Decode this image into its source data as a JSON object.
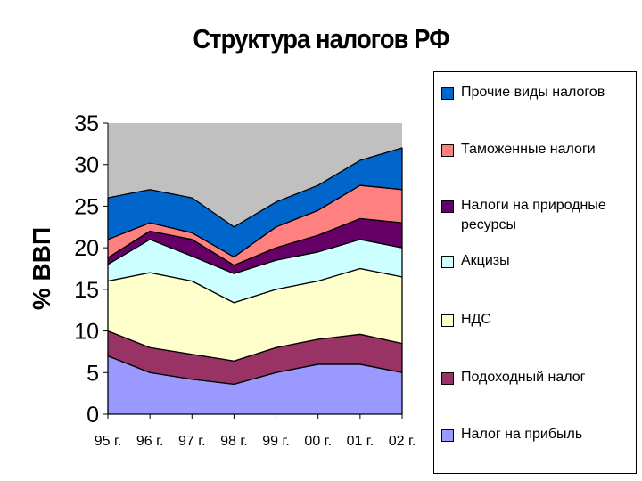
{
  "chart_data": {
    "type": "area",
    "stacked": true,
    "title": "Структура налогов РФ",
    "ylabel": "% ВВП",
    "xlabel": "",
    "categories": [
      "95 г.",
      "96 г.",
      "97 г.",
      "98 г.",
      "99 г.",
      "00 г.",
      "01 г.",
      "02 г."
    ],
    "ylim": [
      0,
      35
    ],
    "yticks": [
      "0",
      "5",
      "10",
      "15",
      "20",
      "25",
      "30",
      "35"
    ],
    "plot_background": "#c0c0c0",
    "legend_position": "right",
    "series": [
      {
        "name": "Налог на прибыль",
        "color": "#9999ff",
        "values": [
          7,
          5,
          4.2,
          3.6,
          5,
          6,
          6,
          5
        ]
      },
      {
        "name": "Подоходный налог",
        "color": "#993366",
        "values": [
          3,
          3,
          3,
          2.8,
          3,
          3,
          3.6,
          3.5
        ]
      },
      {
        "name": "НДС",
        "color": "#ffffcc",
        "values": [
          6,
          9,
          8.8,
          7,
          7,
          7,
          7.9,
          8
        ]
      },
      {
        "name": "Акцизы",
        "color": "#ccffff",
        "values": [
          2,
          4,
          3,
          3.5,
          3.5,
          3.5,
          3.5,
          3.5
        ]
      },
      {
        "name": "Налоги на природные ресурсы",
        "color": "#660066",
        "values": [
          0.8,
          1,
          2,
          1,
          1.5,
          2,
          2.5,
          3
        ]
      },
      {
        "name": "Таможенные налоги",
        "color": "#ff8080",
        "values": [
          2.2,
          1,
          0.8,
          1,
          2.5,
          3,
          4,
          4
        ]
      },
      {
        "name": "Прочие виды налогов",
        "color": "#0066cc",
        "values": [
          5,
          4,
          4.2,
          3.6,
          3,
          3,
          3,
          5
        ]
      }
    ]
  }
}
